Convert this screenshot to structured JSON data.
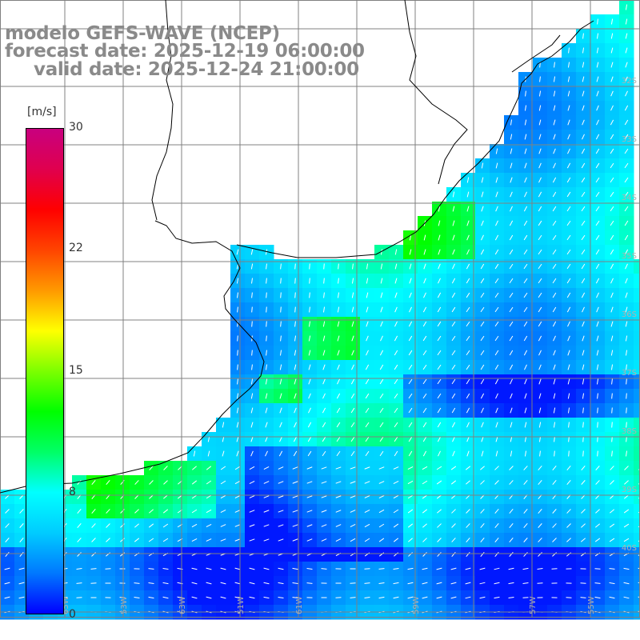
{
  "title": {
    "line1": "modelo GEFS-WAVE (NCEP)",
    "line2": "forecast date: 2025-12-19 06:00:00",
    "line3": "valid date: 2025-12-24 21:00:00"
  },
  "colorbar": {
    "unit": "[m/s]",
    "ticks": [
      "30",
      "22",
      "15",
      "8",
      "0"
    ],
    "tick_values": [
      30,
      22,
      15,
      8,
      0
    ],
    "range": [
      0,
      30
    ],
    "colors": [
      "#0000ff",
      "#0078ff",
      "#00ccff",
      "#00ffff",
      "#00ff66",
      "#00ff00",
      "#7cff00",
      "#ffff00",
      "#ff9900",
      "#ff4400",
      "#ff0000",
      "#e0004e",
      "#c8007f"
    ]
  },
  "map": {
    "lat_labels": [
      "32S",
      "33S",
      "34S",
      "35S",
      "36S",
      "37S",
      "38S",
      "39S",
      "40S"
    ],
    "lon_labels": [
      "65W",
      "63W",
      "61W",
      "59W",
      "57W",
      "55W",
      "53W",
      "51W"
    ],
    "colors": {
      "land": "#ffffff",
      "coast": "#000000",
      "grid": "#808080",
      "wind_arrow": "#ffffff"
    },
    "wind_direction": "NE"
  }
}
